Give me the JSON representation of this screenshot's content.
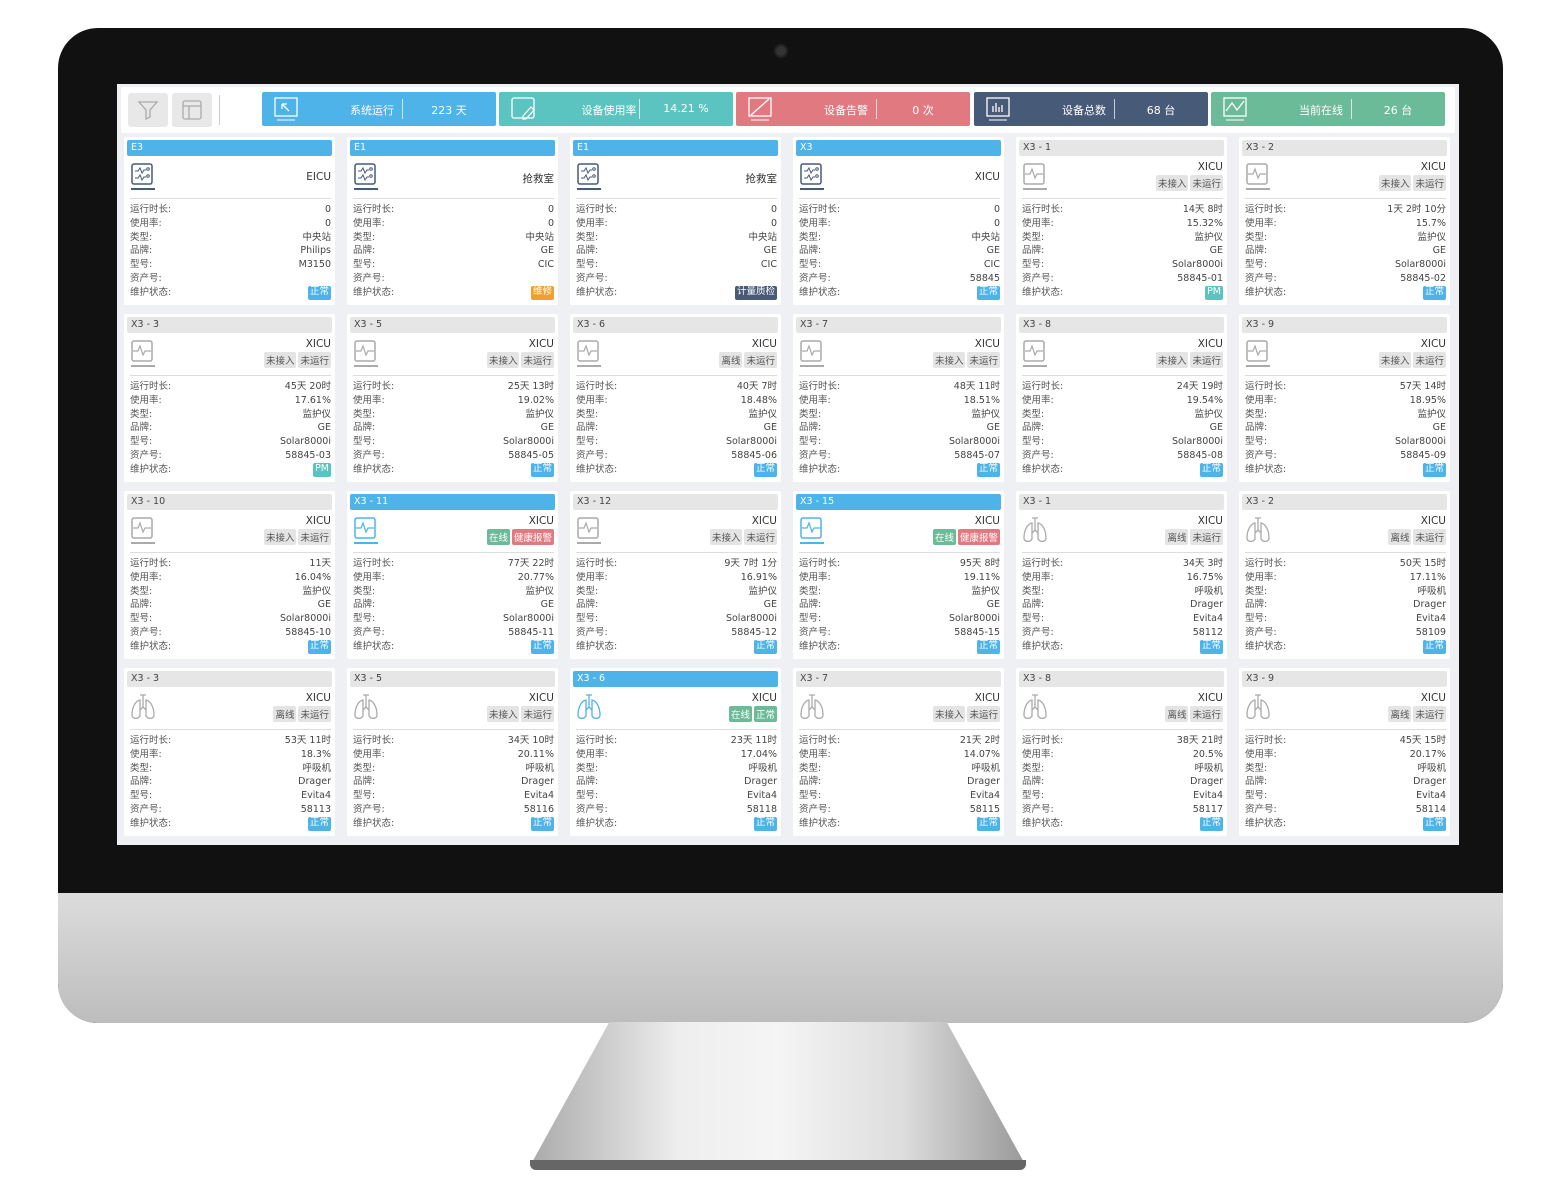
{
  "colors": {
    "blue": "#4db3e8",
    "teal": "#5bc4c0",
    "red": "#e07a80",
    "navy": "#475a78",
    "green": "#6cbb98",
    "orange": "#f0a030",
    "gray_tag": "#e4e4e4"
  },
  "toolbar": {
    "filter_icon": "filter-icon",
    "layout_icon": "layout-icon"
  },
  "stats": [
    {
      "icon": "cursor-icon",
      "label": "系统运行",
      "value": "223 天",
      "color": "#4db3e8"
    },
    {
      "icon": "edit-icon",
      "label": "设备使用率",
      "value": "14.21 %",
      "color": "#5bc4c0"
    },
    {
      "icon": "alarm-icon",
      "label": "设备告警",
      "value": "0 次",
      "color": "#e07a80"
    },
    {
      "icon": "bar-chart-icon",
      "label": "设备总数",
      "value": "68 台",
      "color": "#475a78"
    },
    {
      "icon": "line-chart-icon",
      "label": "当前在线",
      "value": "26 台",
      "color": "#6cbb98"
    }
  ],
  "field_labels": [
    "运行时长:",
    "使用率:",
    "类型:",
    "品牌:",
    "型号:",
    "资产号:",
    "维护状态:"
  ],
  "cards": [
    {
      "title": "E3",
      "header": "active",
      "icon": "station",
      "location": "EICU",
      "tags": [],
      "values": [
        "0",
        "0",
        "中央站",
        "Philips",
        "M3150",
        ""
      ],
      "maint": "正常",
      "maint_color": "#4db3e8"
    },
    {
      "title": "E1",
      "header": "active",
      "icon": "station",
      "location": "抢救室",
      "tags": [],
      "values": [
        "0",
        "0",
        "中央站",
        "GE",
        "CIC",
        ""
      ],
      "maint": "维修",
      "maint_color": "#f0a030"
    },
    {
      "title": "E1",
      "header": "active",
      "icon": "station",
      "location": "抢救室",
      "tags": [],
      "values": [
        "0",
        "0",
        "中央站",
        "GE",
        "CIC",
        ""
      ],
      "maint": "计量质检",
      "maint_color": "#475a78"
    },
    {
      "title": "X3",
      "header": "active",
      "icon": "station",
      "location": "XICU",
      "tags": [],
      "values": [
        "0",
        "0",
        "中央站",
        "GE",
        "CIC",
        "58845"
      ],
      "maint": "正常",
      "maint_color": "#4db3e8"
    },
    {
      "title": "X3 - 1",
      "header": "inactive",
      "icon": "monitor",
      "location": "XICU",
      "tags": [
        "未接入",
        "未运行"
      ],
      "values": [
        "14天 8时",
        "15.32%",
        "监护仪",
        "GE",
        "Solar8000i",
        "58845-01"
      ],
      "maint": "PM",
      "maint_color": "#5bc4c0"
    },
    {
      "title": "X3 - 2",
      "header": "inactive",
      "icon": "monitor",
      "location": "XICU",
      "tags": [
        "未接入",
        "未运行"
      ],
      "values": [
        "1天 2时 10分",
        "15.7%",
        "监护仪",
        "GE",
        "Solar8000i",
        "58845-02"
      ],
      "maint": "正常",
      "maint_color": "#4db3e8"
    },
    {
      "title": "X3 - 3",
      "header": "inactive",
      "icon": "monitor",
      "location": "XICU",
      "tags": [
        "未接入",
        "未运行"
      ],
      "values": [
        "45天 20时",
        "17.61%",
        "监护仪",
        "GE",
        "Solar8000i",
        "58845-03"
      ],
      "maint": "PM",
      "maint_color": "#5bc4c0"
    },
    {
      "title": "X3 - 5",
      "header": "inactive",
      "icon": "monitor",
      "location": "XICU",
      "tags": [
        "未接入",
        "未运行"
      ],
      "values": [
        "25天 13时",
        "19.02%",
        "监护仪",
        "GE",
        "Solar8000i",
        "58845-05"
      ],
      "maint": "正常",
      "maint_color": "#4db3e8"
    },
    {
      "title": "X3 - 6",
      "header": "inactive",
      "icon": "monitor",
      "location": "XICU",
      "tags": [
        "离线",
        "未运行"
      ],
      "values": [
        "40天 7时",
        "18.48%",
        "监护仪",
        "GE",
        "Solar8000i",
        "58845-06"
      ],
      "maint": "正常",
      "maint_color": "#4db3e8"
    },
    {
      "title": "X3 - 7",
      "header": "inactive",
      "icon": "monitor",
      "location": "XICU",
      "tags": [
        "未接入",
        "未运行"
      ],
      "values": [
        "48天 11时",
        "18.51%",
        "监护仪",
        "GE",
        "Solar8000i",
        "58845-07"
      ],
      "maint": "正常",
      "maint_color": "#4db3e8"
    },
    {
      "title": "X3 - 8",
      "header": "inactive",
      "icon": "monitor",
      "location": "XICU",
      "tags": [
        "未接入",
        "未运行"
      ],
      "values": [
        "24天 19时",
        "19.54%",
        "监护仪",
        "GE",
        "Solar8000i",
        "58845-08"
      ],
      "maint": "正常",
      "maint_color": "#4db3e8"
    },
    {
      "title": "X3 - 9",
      "header": "inactive",
      "icon": "monitor",
      "location": "XICU",
      "tags": [
        "未接入",
        "未运行"
      ],
      "values": [
        "57天 14时",
        "18.95%",
        "监护仪",
        "GE",
        "Solar8000i",
        "58845-09"
      ],
      "maint": "正常",
      "maint_color": "#4db3e8"
    },
    {
      "title": "X3 - 10",
      "header": "inactive",
      "icon": "monitor",
      "location": "XICU",
      "tags": [
        "未接入",
        "未运行"
      ],
      "values": [
        "11天",
        "16.04%",
        "监护仪",
        "GE",
        "Solar8000i",
        "58845-10"
      ],
      "maint": "正常",
      "maint_color": "#4db3e8"
    },
    {
      "title": "X3 - 11",
      "header": "active",
      "icon": "monitor",
      "location": "XICU",
      "tags": [
        "在线",
        "健康报警"
      ],
      "values": [
        "77天 22时",
        "20.77%",
        "监护仪",
        "GE",
        "Solar8000i",
        "58845-11"
      ],
      "maint": "正常",
      "maint_color": "#4db3e8"
    },
    {
      "title": "X3 - 12",
      "header": "inactive",
      "icon": "monitor",
      "location": "XICU",
      "tags": [
        "未接入",
        "未运行"
      ],
      "values": [
        "9天 7时 1分",
        "16.91%",
        "监护仪",
        "GE",
        "Solar8000i",
        "58845-12"
      ],
      "maint": "正常",
      "maint_color": "#4db3e8"
    },
    {
      "title": "X3 - 15",
      "header": "active",
      "icon": "monitor",
      "location": "XICU",
      "tags": [
        "在线",
        "健康报警"
      ],
      "values": [
        "95天 8时",
        "19.11%",
        "监护仪",
        "GE",
        "Solar8000i",
        "58845-15"
      ],
      "maint": "正常",
      "maint_color": "#4db3e8"
    },
    {
      "title": "X3 - 1",
      "header": "inactive",
      "icon": "ventilator",
      "location": "XICU",
      "tags": [
        "离线",
        "未运行"
      ],
      "values": [
        "34天 3时",
        "16.75%",
        "呼吸机",
        "Drager",
        "Evita4",
        "58112"
      ],
      "maint": "正常",
      "maint_color": "#4db3e8"
    },
    {
      "title": "X3 - 2",
      "header": "inactive",
      "icon": "ventilator",
      "location": "XICU",
      "tags": [
        "离线",
        "未运行"
      ],
      "values": [
        "50天 15时",
        "17.11%",
        "呼吸机",
        "Drager",
        "Evita4",
        "58109"
      ],
      "maint": "正常",
      "maint_color": "#4db3e8"
    },
    {
      "title": "X3 - 3",
      "header": "inactive",
      "icon": "ventilator",
      "location": "XICU",
      "tags": [
        "离线",
        "未运行"
      ],
      "values": [
        "53天 11时",
        "18.3%",
        "呼吸机",
        "Drager",
        "Evita4",
        "58113"
      ],
      "maint": "正常",
      "maint_color": "#4db3e8"
    },
    {
      "title": "X3 - 5",
      "header": "inactive",
      "icon": "ventilator",
      "location": "XICU",
      "tags": [
        "未接入",
        "未运行"
      ],
      "values": [
        "34天 10时",
        "20.11%",
        "呼吸机",
        "Drager",
        "Evita4",
        "58116"
      ],
      "maint": "正常",
      "maint_color": "#4db3e8"
    },
    {
      "title": "X3 - 6",
      "header": "active",
      "icon": "ventilator",
      "location": "XICU",
      "tags": [
        "在线",
        "正常"
      ],
      "values": [
        "23天 11时",
        "17.04%",
        "呼吸机",
        "Drager",
        "Evita4",
        "58118"
      ],
      "maint": "正常",
      "maint_color": "#4db3e8"
    },
    {
      "title": "X3 - 7",
      "header": "inactive",
      "icon": "ventilator",
      "location": "XICU",
      "tags": [
        "未接入",
        "未运行"
      ],
      "values": [
        "21天 2时",
        "14.07%",
        "呼吸机",
        "Drager",
        "Evita4",
        "58115"
      ],
      "maint": "正常",
      "maint_color": "#4db3e8"
    },
    {
      "title": "X3 - 8",
      "header": "inactive",
      "icon": "ventilator",
      "location": "XICU",
      "tags": [
        "离线",
        "未运行"
      ],
      "values": [
        "38天 21时",
        "20.5%",
        "呼吸机",
        "Drager",
        "Evita4",
        "58117"
      ],
      "maint": "正常",
      "maint_color": "#4db3e8"
    },
    {
      "title": "X3 - 9",
      "header": "inactive",
      "icon": "ventilator",
      "location": "XICU",
      "tags": [
        "离线",
        "未运行"
      ],
      "values": [
        "45天 15时",
        "20.17%",
        "呼吸机",
        "Drager",
        "Evita4",
        "58114"
      ],
      "maint": "正常",
      "maint_color": "#4db3e8"
    }
  ]
}
